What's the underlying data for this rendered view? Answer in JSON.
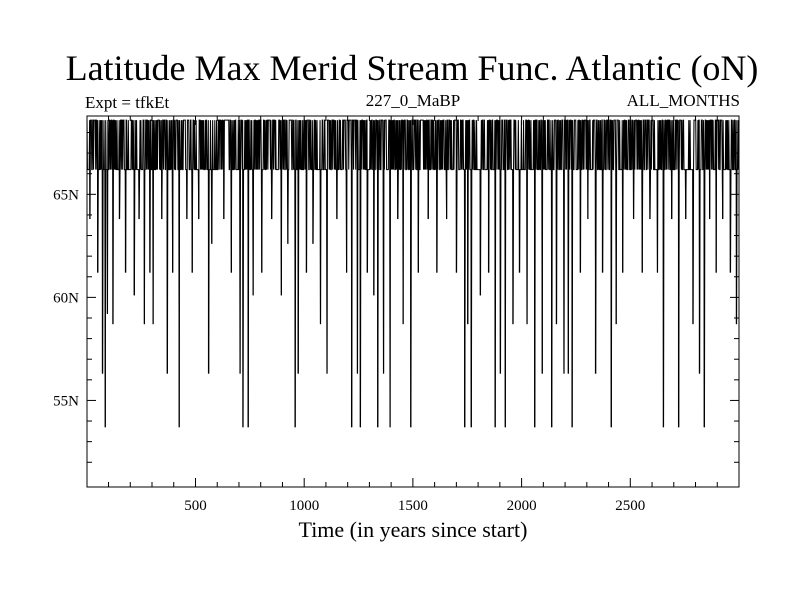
{
  "chart_data": {
    "type": "line",
    "title": "Latitude Max Merid Stream Func. Atlantic (oN)",
    "subtitle_left": "Expt = tfkEt",
    "subtitle_center": "227_0_MaBP",
    "subtitle_right": "ALL_MONTHS",
    "xlabel": "Time (in years since start)",
    "ylabel": "",
    "xlim": [
      1,
      3000
    ],
    "ylim": [
      50.8,
      68.8
    ],
    "x_ticks": [
      500,
      1000,
      1500,
      2000,
      2500
    ],
    "y_ticks": [
      "55N",
      "60N",
      "65N"
    ],
    "y_tick_values": [
      55,
      60,
      65
    ],
    "grid": false,
    "series": [
      {
        "values_summary": "Annual series alternating between ~68.6N and ~66.2N with frequent dips to 52.5-65N",
        "baseline_high": 68.6,
        "baseline_low": 66.2,
        "dips": [
          {
            "x": 14,
            "y": 63.8
          },
          {
            "x": 50,
            "y": 61.2
          },
          {
            "x": 72,
            "y": 56.3
          },
          {
            "x": 85,
            "y": 53.7
          },
          {
            "x": 95,
            "y": 59.2
          },
          {
            "x": 120,
            "y": 58.7
          },
          {
            "x": 150,
            "y": 63.8
          },
          {
            "x": 178,
            "y": 61.2
          },
          {
            "x": 218,
            "y": 60.1
          },
          {
            "x": 240,
            "y": 63.8
          },
          {
            "x": 265,
            "y": 58.7
          },
          {
            "x": 290,
            "y": 61.2
          },
          {
            "x": 305,
            "y": 58.7
          },
          {
            "x": 345,
            "y": 63.8
          },
          {
            "x": 370,
            "y": 56.3
          },
          {
            "x": 395,
            "y": 61.2
          },
          {
            "x": 425,
            "y": 53.7
          },
          {
            "x": 460,
            "y": 63.8
          },
          {
            "x": 485,
            "y": 61.2
          },
          {
            "x": 515,
            "y": 63.8
          },
          {
            "x": 560,
            "y": 56.3
          },
          {
            "x": 575,
            "y": 62.6
          },
          {
            "x": 630,
            "y": 63.8
          },
          {
            "x": 665,
            "y": 61.2
          },
          {
            "x": 705,
            "y": 56.3
          },
          {
            "x": 718,
            "y": 53.7
          },
          {
            "x": 742,
            "y": 53.7
          },
          {
            "x": 765,
            "y": 60.1
          },
          {
            "x": 805,
            "y": 61.2
          },
          {
            "x": 850,
            "y": 63.8
          },
          {
            "x": 895,
            "y": 60.1
          },
          {
            "x": 925,
            "y": 62.6
          },
          {
            "x": 958,
            "y": 53.7
          },
          {
            "x": 972,
            "y": 56.3
          },
          {
            "x": 1010,
            "y": 61.2
          },
          {
            "x": 1040,
            "y": 62.6
          },
          {
            "x": 1075,
            "y": 58.7
          },
          {
            "x": 1105,
            "y": 56.3
          },
          {
            "x": 1150,
            "y": 63.8
          },
          {
            "x": 1195,
            "y": 61.2
          },
          {
            "x": 1218,
            "y": 53.7
          },
          {
            "x": 1245,
            "y": 56.3
          },
          {
            "x": 1258,
            "y": 53.7
          },
          {
            "x": 1290,
            "y": 61.2
          },
          {
            "x": 1320,
            "y": 60.1
          },
          {
            "x": 1338,
            "y": 53.7
          },
          {
            "x": 1365,
            "y": 56.3
          },
          {
            "x": 1395,
            "y": 53.7
          },
          {
            "x": 1430,
            "y": 63.8
          },
          {
            "x": 1455,
            "y": 58.7
          },
          {
            "x": 1490,
            "y": 53.7
          },
          {
            "x": 1525,
            "y": 61.2
          },
          {
            "x": 1570,
            "y": 63.8
          },
          {
            "x": 1610,
            "y": 61.2
          },
          {
            "x": 1655,
            "y": 63.8
          },
          {
            "x": 1700,
            "y": 61.2
          },
          {
            "x": 1738,
            "y": 53.7
          },
          {
            "x": 1752,
            "y": 58.7
          },
          {
            "x": 1768,
            "y": 53.7
          },
          {
            "x": 1810,
            "y": 60.1
          },
          {
            "x": 1848,
            "y": 61.2
          },
          {
            "x": 1878,
            "y": 53.7
          },
          {
            "x": 1902,
            "y": 56.3
          },
          {
            "x": 1925,
            "y": 53.7
          },
          {
            "x": 1960,
            "y": 58.7
          },
          {
            "x": 1990,
            "y": 61.2
          },
          {
            "x": 2025,
            "y": 58.7
          },
          {
            "x": 2060,
            "y": 53.7
          },
          {
            "x": 2095,
            "y": 56.3
          },
          {
            "x": 2138,
            "y": 53.7
          },
          {
            "x": 2160,
            "y": 58.7
          },
          {
            "x": 2195,
            "y": 56.3
          },
          {
            "x": 2215,
            "y": 56.3
          },
          {
            "x": 2232,
            "y": 53.7
          },
          {
            "x": 2270,
            "y": 61.2
          },
          {
            "x": 2305,
            "y": 63.8
          },
          {
            "x": 2340,
            "y": 56.3
          },
          {
            "x": 2372,
            "y": 61.2
          },
          {
            "x": 2412,
            "y": 53.7
          },
          {
            "x": 2435,
            "y": 58.7
          },
          {
            "x": 2465,
            "y": 61.2
          },
          {
            "x": 2515,
            "y": 63.8
          },
          {
            "x": 2555,
            "y": 61.2
          },
          {
            "x": 2590,
            "y": 63.8
          },
          {
            "x": 2625,
            "y": 61.2
          },
          {
            "x": 2652,
            "y": 53.7
          },
          {
            "x": 2690,
            "y": 63.8
          },
          {
            "x": 2722,
            "y": 53.7
          },
          {
            "x": 2755,
            "y": 63.8
          },
          {
            "x": 2788,
            "y": 58.7
          },
          {
            "x": 2818,
            "y": 56.3
          },
          {
            "x": 2840,
            "y": 53.7
          },
          {
            "x": 2865,
            "y": 63.8
          },
          {
            "x": 2895,
            "y": 61.2
          },
          {
            "x": 2925,
            "y": 63.8
          },
          {
            "x": 2960,
            "y": 61.2
          },
          {
            "x": 2988,
            "y": 58.7
          }
        ]
      }
    ]
  }
}
